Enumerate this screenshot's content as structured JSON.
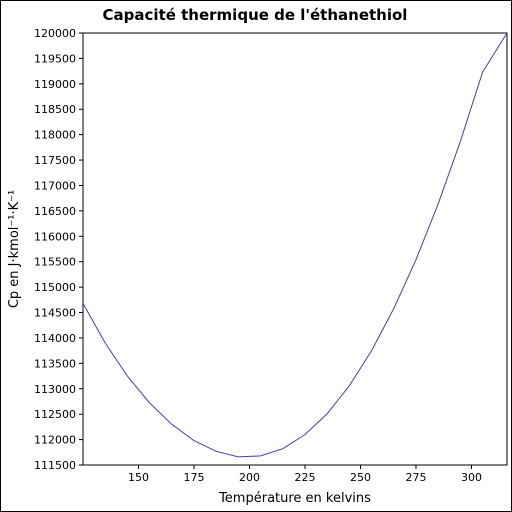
{
  "chart_data": {
    "type": "line",
    "title": "Capacité thermique de l'éthanethiol",
    "xlabel": "Température en kelvins",
    "ylabel": "Cp en J·kmol⁻¹·K⁻¹",
    "xlim": [
      125,
      316
    ],
    "ylim": [
      111500,
      120000
    ],
    "xticks": [
      150,
      175,
      200,
      225,
      250,
      275,
      300
    ],
    "xtick_labels": [
      "150",
      "175",
      "200",
      "225",
      "250",
      "275",
      "300"
    ],
    "yticks": [
      111500,
      112000,
      112500,
      113000,
      113500,
      114000,
      114500,
      115000,
      115500,
      116000,
      116500,
      117000,
      117500,
      118000,
      118500,
      119000,
      119500,
      120000
    ],
    "ytick_labels": [
      "111500",
      "112000",
      "112500",
      "113000",
      "113500",
      "114000",
      "114500",
      "115000",
      "115500",
      "116000",
      "116500",
      "117000",
      "117500",
      "118000",
      "118500",
      "119000",
      "119500",
      "120000"
    ],
    "grid": false,
    "series": [
      {
        "color": "#4040b0",
        "x": [
          125,
          135,
          145,
          155,
          165,
          175,
          185,
          195,
          205,
          215,
          225,
          235,
          245,
          255,
          265,
          275,
          285,
          295,
          305,
          316
        ],
        "y": [
          114680,
          113900,
          113250,
          112720,
          112300,
          111980,
          111770,
          111660,
          111680,
          111820,
          112100,
          112510,
          113060,
          113750,
          114580,
          115540,
          116640,
          117870,
          119230,
          120000
        ]
      }
    ]
  }
}
